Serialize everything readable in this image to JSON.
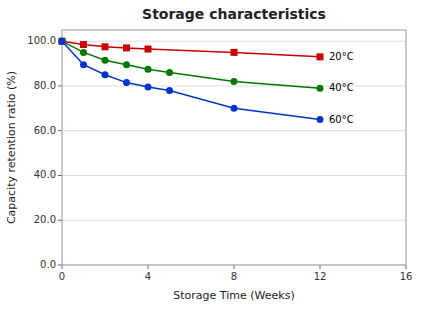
{
  "chart_data": {
    "type": "line",
    "title": "Storage characteristics",
    "xlabel": "Storage Time (Weeks)",
    "ylabel": "Capacity retention ratio (%)",
    "xlim": [
      0,
      16
    ],
    "ylim": [
      0,
      105
    ],
    "xticks": [
      0,
      4,
      8,
      12,
      16
    ],
    "yticks": [
      {
        "value": 0,
        "label": "0.0"
      },
      {
        "value": 20,
        "label": "20.0"
      },
      {
        "value": 40,
        "label": "40.0"
      },
      {
        "value": 60,
        "label": "60.0"
      },
      {
        "value": 80,
        "label": "80.0"
      },
      {
        "value": 100,
        "label": "100.0"
      }
    ],
    "grid": true,
    "series": [
      {
        "name": "20°C",
        "color": "#cc0000",
        "marker": "square",
        "x": [
          0,
          1,
          2,
          3,
          4,
          8,
          12
        ],
        "values": [
          100.0,
          98.5,
          97.5,
          97.0,
          96.5,
          95.0,
          93.0
        ]
      },
      {
        "name": "40°C",
        "color": "#007700",
        "marker": "circle",
        "x": [
          0,
          1,
          2,
          3,
          4,
          5,
          8,
          12
        ],
        "values": [
          100.0,
          95.0,
          91.5,
          89.5,
          87.5,
          86.0,
          82.0,
          79.0
        ]
      },
      {
        "name": "60°C",
        "color": "#0033cc",
        "marker": "circle",
        "x": [
          0,
          1,
          2,
          3,
          4,
          5,
          8,
          12
        ],
        "values": [
          100.0,
          89.5,
          85.0,
          81.5,
          79.5,
          78.0,
          70.0,
          65.0
        ]
      }
    ]
  }
}
